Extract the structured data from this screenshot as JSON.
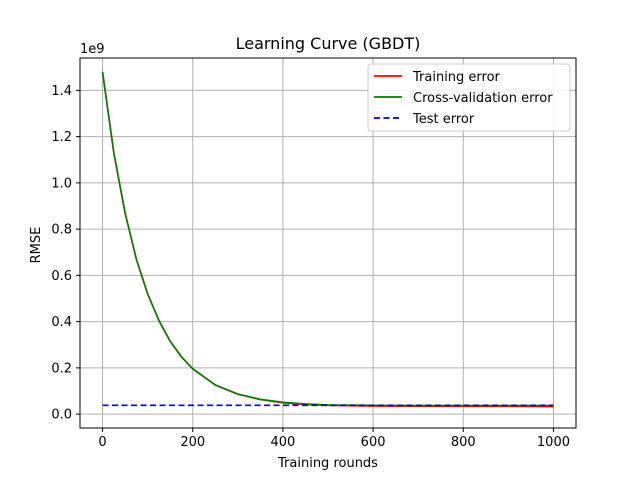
{
  "chart_data": {
    "type": "line",
    "title": "Learning Curve (GBDT)",
    "xlabel": "Training rounds",
    "ylabel": "RMSE",
    "y_multiplier_label": "1e9",
    "xlim": [
      -50,
      1050
    ],
    "ylim": [
      -0.06,
      1.54
    ],
    "xticks": [
      0,
      200,
      400,
      600,
      800,
      1000
    ],
    "xtick_labels": [
      "0",
      "200",
      "400",
      "600",
      "800",
      "1000"
    ],
    "yticks": [
      0.0,
      0.2,
      0.4,
      0.6,
      0.8,
      1.0,
      1.2,
      1.4
    ],
    "ytick_labels": [
      "0.0",
      "0.2",
      "0.4",
      "0.6",
      "0.8",
      "1.0",
      "1.2",
      "1.4"
    ],
    "grid": true,
    "legend_position": "upper right",
    "series": [
      {
        "name": "Training error",
        "color": "#ff0000",
        "style": "solid",
        "x": [
          0,
          25,
          50,
          75,
          100,
          125,
          150,
          175,
          200,
          250,
          300,
          350,
          400,
          450,
          500,
          600,
          700,
          800,
          900,
          1000
        ],
        "y": [
          1.48,
          1.13,
          0.87,
          0.67,
          0.52,
          0.405,
          0.315,
          0.248,
          0.196,
          0.126,
          0.086,
          0.063,
          0.049,
          0.042,
          0.038,
          0.035,
          0.034,
          0.033,
          0.033,
          0.032
        ]
      },
      {
        "name": "Cross-validation error",
        "color": "#008000",
        "style": "solid",
        "x": [
          0,
          25,
          50,
          75,
          100,
          125,
          150,
          175,
          200,
          250,
          300,
          350,
          400,
          450,
          500,
          600,
          700,
          800,
          900,
          1000
        ],
        "y": [
          1.48,
          1.13,
          0.87,
          0.67,
          0.52,
          0.405,
          0.315,
          0.248,
          0.196,
          0.126,
          0.087,
          0.064,
          0.051,
          0.044,
          0.04,
          0.038,
          0.037,
          0.037,
          0.037,
          0.037
        ]
      },
      {
        "name": "Test error",
        "color": "#0000cc",
        "style": "dashed",
        "x": [
          0,
          1000
        ],
        "y": [
          0.038,
          0.038
        ]
      }
    ]
  }
}
